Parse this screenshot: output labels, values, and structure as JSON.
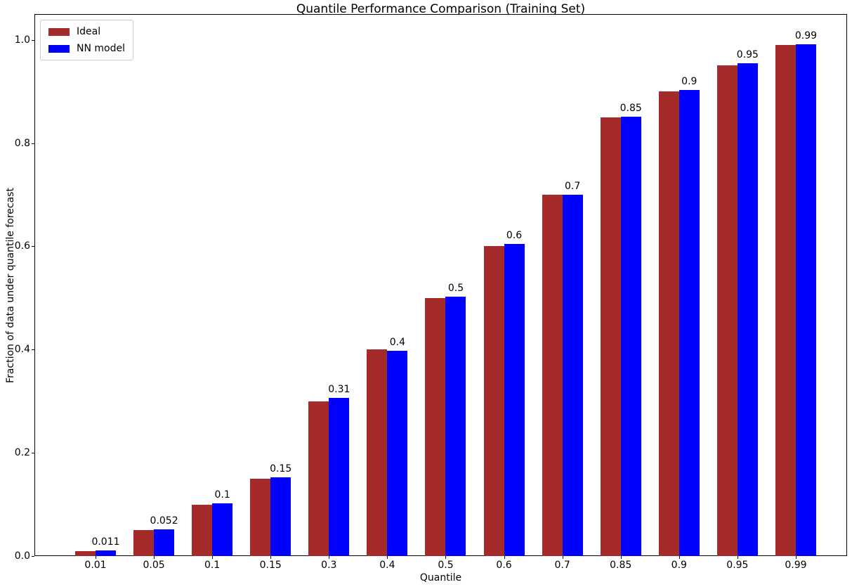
{
  "chart_data": {
    "type": "bar",
    "title": "Quantile Performance Comparison (Training Set)",
    "xlabel": "Quantile",
    "ylabel": "Fraction of data under quantile forecast",
    "categories": [
      "0.01",
      "0.05",
      "0.1",
      "0.15",
      "0.3",
      "0.4",
      "0.5",
      "0.6",
      "0.7",
      "0.85",
      "0.9",
      "0.95",
      "0.99"
    ],
    "series": [
      {
        "name": "Ideal",
        "color": "#A52A2A",
        "values": [
          0.01,
          0.05,
          0.1,
          0.15,
          0.3,
          0.4,
          0.5,
          0.6,
          0.7,
          0.85,
          0.9,
          0.95,
          0.99
        ]
      },
      {
        "name": "NN model",
        "color": "#0000FF",
        "values": [
          0.011,
          0.052,
          0.102,
          0.152,
          0.306,
          0.398,
          0.503,
          0.605,
          0.7,
          0.851,
          0.903,
          0.954,
          0.992
        ],
        "bar_labels": [
          "0.011",
          "0.052",
          "0.1",
          "0.15",
          "0.31",
          "0.4",
          "0.5",
          "0.6",
          "0.7",
          "0.85",
          "0.9",
          "0.95",
          "0.99"
        ]
      }
    ],
    "yticks": [
      "0.0",
      "0.2",
      "0.4",
      "0.6",
      "0.8",
      "1.0"
    ],
    "ylim": [
      0,
      1.05
    ],
    "grid": false,
    "legend_position": "upper left",
    "label_color": "#000000",
    "background_color": "#ffffff"
  }
}
